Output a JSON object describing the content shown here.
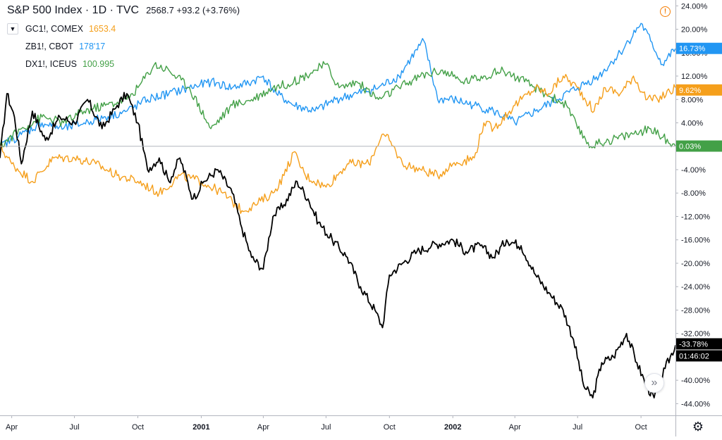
{
  "header": {
    "title": "S&P 500 Index · 1D · TVC",
    "values": "2568.7 +93.2 (+3.76%)"
  },
  "legend": {
    "collapse_icon": "chevron-down-icon",
    "items": [
      {
        "name": "GC1!, COMEX",
        "value": "1653.4",
        "color": "#f59f1b"
      },
      {
        "name": "ZB1!, CBOT",
        "value": "178'17",
        "color": "#2196f3"
      },
      {
        "name": "DX1!, ICEUS",
        "value": "100.995",
        "color": "#43a047"
      }
    ]
  },
  "icons": {
    "alert": "alert-circle-icon",
    "settings": "gear-icon",
    "scroll": "double-chevron-right-icon"
  },
  "alert_glyph": "!",
  "settings_glyph": "⚙",
  "scroll_glyph": "»",
  "chart_data": {
    "type": "line",
    "title": "",
    "xlabel": "",
    "ylabel": "",
    "ylim": [
      -46,
      25
    ],
    "y_ticks": [
      24,
      20,
      16,
      12,
      8,
      4,
      0,
      -4,
      -8,
      -12,
      -16,
      -20,
      -24,
      -28,
      -32,
      -36,
      -40,
      -44
    ],
    "y_tick_labels": [
      "24.00%",
      "20.00%",
      "16.00%",
      "12.00%",
      "8.00%",
      "4.00%",
      "0.00%",
      "-4.00%",
      "-8.00%",
      "-12.00%",
      "-16.00%",
      "-20.00%",
      "-24.00%",
      "-28.00%",
      "-32.00%",
      "-36.00%",
      "-40.00%",
      "-44.00%"
    ],
    "x_range": [
      "2000-03-15",
      "2002-11-20"
    ],
    "x_ticks": [
      {
        "date": "2000-04-01",
        "label": "Apr",
        "bold": false
      },
      {
        "date": "2000-07-01",
        "label": "Jul",
        "bold": false
      },
      {
        "date": "2000-10-01",
        "label": "Oct",
        "bold": false
      },
      {
        "date": "2001-01-01",
        "label": "2001",
        "bold": true
      },
      {
        "date": "2001-04-01",
        "label": "Apr",
        "bold": false
      },
      {
        "date": "2001-07-01",
        "label": "Jul",
        "bold": false
      },
      {
        "date": "2001-10-01",
        "label": "Oct",
        "bold": false
      },
      {
        "date": "2002-01-01",
        "label": "2002",
        "bold": true
      },
      {
        "date": "2002-04-01",
        "label": "Apr",
        "bold": false
      },
      {
        "date": "2002-07-01",
        "label": "Jul",
        "bold": false
      },
      {
        "date": "2002-10-01",
        "label": "Oct",
        "bold": false
      }
    ],
    "zero_line": 0,
    "grid": false,
    "series": [
      {
        "name": "S&P 500 Index",
        "color": "#000000",
        "last_label": "-33.78%",
        "last_value": -33.78,
        "countdown": "01:46:02",
        "x": [
          "2000-03-15",
          "2000-03-25",
          "2000-04-05",
          "2000-04-15",
          "2000-05-01",
          "2000-05-20",
          "2000-06-10",
          "2000-07-01",
          "2000-07-20",
          "2000-08-10",
          "2000-09-01",
          "2000-09-15",
          "2000-10-01",
          "2000-10-15",
          "2000-11-01",
          "2000-11-15",
          "2000-12-01",
          "2000-12-20",
          "2001-01-05",
          "2001-01-25",
          "2001-02-15",
          "2001-03-01",
          "2001-03-15",
          "2001-04-01",
          "2001-04-15",
          "2001-05-01",
          "2001-05-20",
          "2001-06-05",
          "2001-06-20",
          "2001-07-10",
          "2001-08-01",
          "2001-08-20",
          "2001-09-10",
          "2001-09-21",
          "2001-10-01",
          "2001-10-20",
          "2001-11-10",
          "2001-12-01",
          "2002-01-01",
          "2002-01-20",
          "2002-02-10",
          "2002-03-01",
          "2002-03-20",
          "2002-04-10",
          "2002-05-01",
          "2002-05-20",
          "2002-06-10",
          "2002-06-25",
          "2002-07-10",
          "2002-07-23",
          "2002-08-05",
          "2002-08-22",
          "2002-09-10",
          "2002-09-25",
          "2002-10-09",
          "2002-10-20",
          "2002-11-05",
          "2002-11-20"
        ],
        "values": [
          -2,
          9,
          5,
          -3,
          6,
          1,
          5,
          4,
          8,
          3,
          7,
          9,
          4,
          -4,
          -2,
          -6,
          -2,
          -9,
          -6,
          -4,
          -8,
          -14,
          -19,
          -21,
          -12,
          -10,
          -6,
          -9,
          -13,
          -16,
          -19,
          -24,
          -28,
          -31,
          -22,
          -20,
          -18,
          -17,
          -16,
          -18,
          -17,
          -19,
          -16,
          -17,
          -22,
          -25,
          -28,
          -33,
          -41,
          -43,
          -37,
          -36,
          -32,
          -37,
          -41,
          -43,
          -38,
          -34
        ]
      },
      {
        "name": "GC1!, COMEX",
        "color": "#f59f1b",
        "last_label": "9.62%",
        "last_value": 9.62,
        "x": [
          "2000-03-15",
          "2000-04-01",
          "2000-05-01",
          "2000-06-01",
          "2000-07-01",
          "2000-08-01",
          "2000-09-01",
          "2000-10-01",
          "2000-11-01",
          "2000-12-01",
          "2001-01-01",
          "2001-02-01",
          "2001-03-01",
          "2001-03-20",
          "2001-04-15",
          "2001-05-01",
          "2001-05-15",
          "2001-06-01",
          "2001-07-01",
          "2001-08-01",
          "2001-09-01",
          "2001-09-20",
          "2001-10-01",
          "2001-10-20",
          "2001-11-15",
          "2001-12-10",
          "2002-01-01",
          "2002-02-01",
          "2002-02-15",
          "2002-03-01",
          "2002-04-01",
          "2002-05-01",
          "2002-05-20",
          "2002-06-10",
          "2002-07-01",
          "2002-07-25",
          "2002-08-10",
          "2002-09-01",
          "2002-09-20",
          "2002-10-10",
          "2002-10-25",
          "2002-11-20"
        ],
        "values": [
          0,
          -3,
          -6,
          -2,
          -2,
          -3,
          -5,
          -6,
          -8,
          -5,
          -6,
          -8,
          -11,
          -10,
          -8,
          -5,
          -1,
          -5,
          -7,
          -3,
          -3,
          2,
          1,
          -3,
          -4,
          -5,
          -3,
          -2,
          4,
          3,
          7,
          10,
          9,
          12,
          10,
          6,
          10,
          9,
          12,
          8,
          8,
          10
        ]
      },
      {
        "name": "ZB1!, CBOT",
        "color": "#2196f3",
        "last_label": "16.73%",
        "last_value": 16.73,
        "x": [
          "2000-03-15",
          "2000-04-15",
          "2000-05-15",
          "2000-06-15",
          "2000-07-15",
          "2000-08-15",
          "2000-09-15",
          "2000-10-15",
          "2000-11-15",
          "2000-12-15",
          "2001-01-15",
          "2001-02-15",
          "2001-03-15",
          "2001-04-01",
          "2001-04-20",
          "2001-05-15",
          "2001-06-15",
          "2001-07-15",
          "2001-08-15",
          "2001-09-15",
          "2001-10-15",
          "2001-11-01",
          "2001-11-20",
          "2001-12-10",
          "2002-01-01",
          "2002-02-01",
          "2002-03-01",
          "2002-04-01",
          "2002-05-01",
          "2002-06-01",
          "2002-07-01",
          "2002-08-01",
          "2002-09-01",
          "2002-10-01",
          "2002-10-15",
          "2002-11-01",
          "2002-11-20"
        ],
        "values": [
          0,
          2,
          4,
          3,
          4,
          5,
          6,
          8,
          9,
          10,
          11,
          10,
          11,
          12,
          9,
          7,
          6,
          8,
          9,
          10,
          12,
          15,
          18,
          8,
          8,
          7,
          6,
          4,
          6,
          8,
          10,
          12,
          16,
          21,
          18,
          14,
          16.7
        ]
      },
      {
        "name": "DX1!, ICEUS",
        "color": "#43a047",
        "last_label": "0.03%",
        "last_value": 0.03,
        "x": [
          "2000-03-15",
          "2000-04-15",
          "2000-05-15",
          "2000-06-15",
          "2000-07-15",
          "2000-08-15",
          "2000-09-15",
          "2000-10-01",
          "2000-10-25",
          "2000-11-15",
          "2000-12-15",
          "2001-01-15",
          "2001-02-15",
          "2001-03-15",
          "2001-04-15",
          "2001-05-15",
          "2001-06-15",
          "2001-07-01",
          "2001-07-20",
          "2001-08-15",
          "2001-09-15",
          "2001-10-15",
          "2001-11-15",
          "2001-12-15",
          "2002-01-15",
          "2002-02-15",
          "2002-03-15",
          "2002-04-15",
          "2002-05-15",
          "2002-06-15",
          "2002-07-01",
          "2002-07-20",
          "2002-08-15",
          "2002-09-15",
          "2002-10-15",
          "2002-11-20"
        ],
        "values": [
          0,
          3,
          5,
          4,
          6,
          7,
          8,
          10,
          14,
          13,
          10,
          3,
          7,
          8,
          10,
          11,
          13,
          14,
          10,
          11,
          8,
          10,
          12,
          13,
          11,
          12,
          13,
          11,
          9,
          7,
          3,
          0,
          1,
          2,
          3,
          0
        ]
      }
    ]
  }
}
